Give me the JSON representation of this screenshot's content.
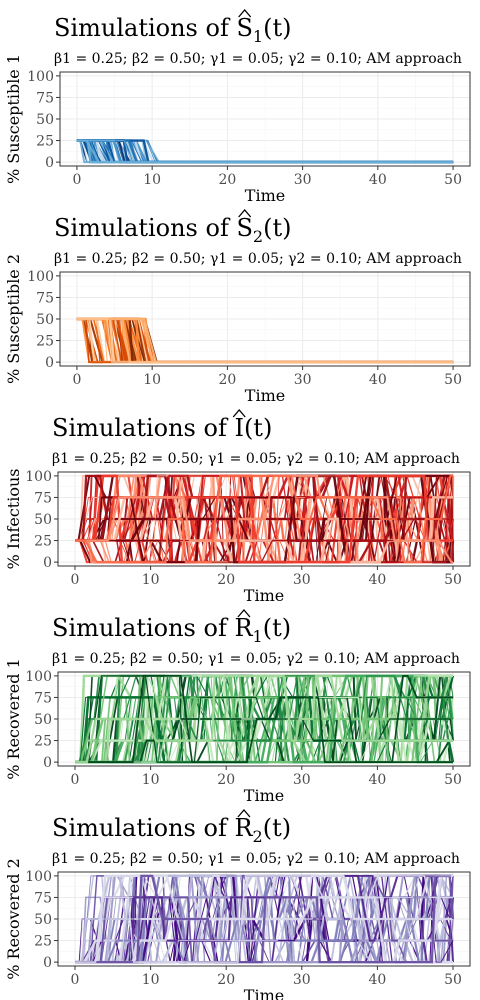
{
  "chart_data": [
    {
      "type": "line",
      "title_prefix": "Simulations of ",
      "title_var": "S",
      "title_sub": "1",
      "title_suffix": "(t)",
      "subtitle": "β1 = 0.25; β2 = 0.50; γ1 = 0.05; γ2 = 0.10; AM approach",
      "xlabel": "Time",
      "ylabel": "% Susceptible 1",
      "xlim": [
        0,
        50
      ],
      "ylim": [
        0,
        100
      ],
      "xticks": [
        0,
        10,
        20,
        30,
        40,
        50
      ],
      "yticks": [
        0,
        25,
        50,
        75,
        100
      ],
      "grid": true,
      "palette": [
        "#c6dbef",
        "#9ecae1",
        "#6baed6",
        "#4292c6",
        "#2171b5",
        "#08519c",
        "#08306b"
      ],
      "levels": [
        0,
        25
      ],
      "start": 25,
      "n_paths": 70
    },
    {
      "type": "line",
      "title_prefix": "Simulations of ",
      "title_var": "S",
      "title_sub": "2",
      "title_suffix": "(t)",
      "subtitle": "β1 = 0.25; β2 = 0.50; γ1 = 0.05; γ2 = 0.10; AM approach",
      "xlabel": "Time",
      "ylabel": "% Susceptible 2",
      "xlim": [
        0,
        50
      ],
      "ylim": [
        0,
        100
      ],
      "xticks": [
        0,
        10,
        20,
        30,
        40,
        50
      ],
      "yticks": [
        0,
        25,
        50,
        75,
        100
      ],
      "grid": true,
      "palette": [
        "#fdd0a2",
        "#fdae6b",
        "#fd8d3c",
        "#f16913",
        "#d94801",
        "#a63603",
        "#7f2704"
      ],
      "levels": [
        0,
        50
      ],
      "start": 50,
      "n_paths": 70
    },
    {
      "type": "line",
      "title_prefix": "Simulations of ",
      "title_var": "I",
      "title_sub": "",
      "title_suffix": "(t)",
      "subtitle": "β1 = 0.25; β2 = 0.50; γ1 = 0.05; γ2 = 0.10; AM approach",
      "xlabel": "Time",
      "ylabel": "% Infectious",
      "xlim": [
        0,
        50
      ],
      "ylim": [
        0,
        100
      ],
      "xticks": [
        0,
        10,
        20,
        30,
        40,
        50
      ],
      "yticks": [
        0,
        25,
        50,
        75,
        100
      ],
      "grid": true,
      "palette": [
        "#fcbba1",
        "#fc9272",
        "#fb6a4a",
        "#ef3b2c",
        "#cb181d",
        "#a50f15",
        "#67000d"
      ],
      "levels": [
        0,
        25,
        50,
        75,
        100
      ],
      "start": 25,
      "n_paths": 90
    },
    {
      "type": "line",
      "title_prefix": "Simulations of ",
      "title_var": "R",
      "title_sub": "1",
      "title_suffix": "(t)",
      "subtitle": "β1 = 0.25; β2 = 0.50; γ1 = 0.05; γ2 = 0.10; AM approach",
      "xlabel": "Time",
      "ylabel": "% Recovered 1",
      "xlim": [
        0,
        50
      ],
      "ylim": [
        0,
        100
      ],
      "xticks": [
        0,
        10,
        20,
        30,
        40,
        50
      ],
      "yticks": [
        0,
        25,
        50,
        75,
        100
      ],
      "grid": true,
      "palette": [
        "#c7e9c0",
        "#a1d99b",
        "#74c476",
        "#41ab5d",
        "#238b45",
        "#006d2c",
        "#00441b"
      ],
      "levels": [
        0,
        25,
        50,
        75,
        100
      ],
      "start": 0,
      "n_paths": 80
    },
    {
      "type": "line",
      "title_prefix": "Simulations of ",
      "title_var": "R",
      "title_sub": "2",
      "title_suffix": "(t)",
      "subtitle": "β1 = 0.25; β2 = 0.50; γ1 = 0.05; γ2 = 0.10; AM approach",
      "xlabel": "Time",
      "ylabel": "% Recovered 2",
      "xlim": [
        0,
        50
      ],
      "ylim": [
        0,
        100
      ],
      "xticks": [
        0,
        10,
        20,
        30,
        40,
        50
      ],
      "yticks": [
        0,
        25,
        50,
        75,
        100
      ],
      "grid": true,
      "palette": [
        "#dadaeb",
        "#bcbddc",
        "#9e9ac8",
        "#807dba",
        "#6a51a3",
        "#54278f",
        "#3f007d"
      ],
      "levels": [
        0,
        25,
        50,
        75,
        100
      ],
      "start": 0,
      "n_paths": 80
    }
  ]
}
